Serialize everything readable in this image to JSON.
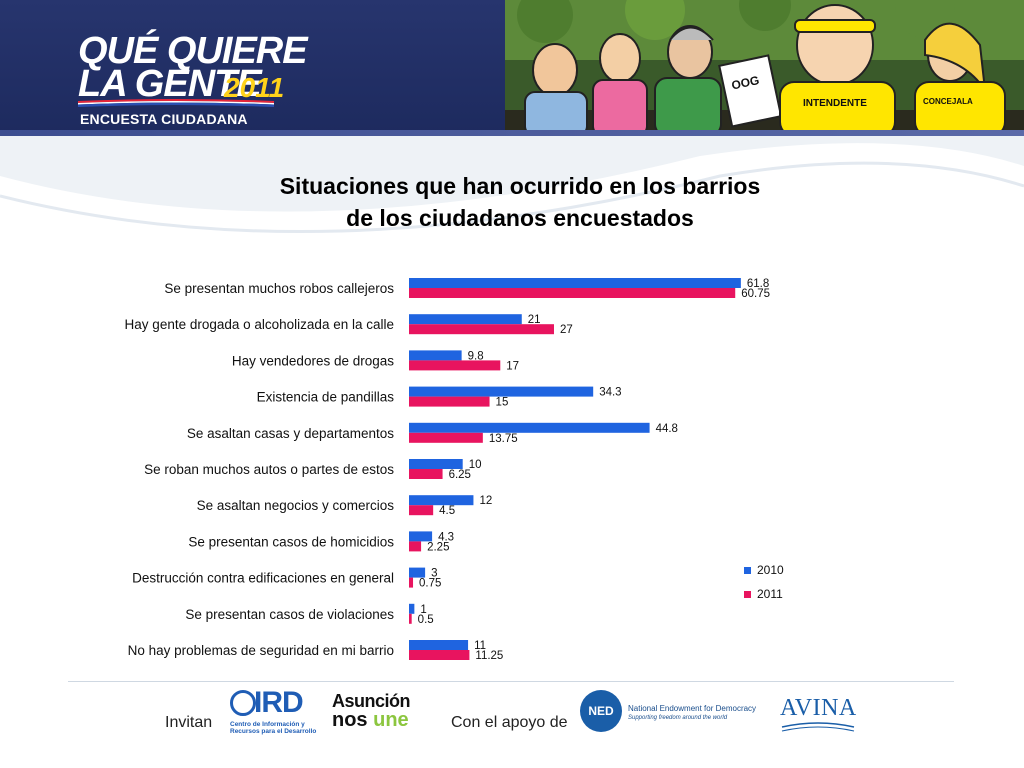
{
  "header": {
    "logo_line1": "QUÉ QUIERE",
    "logo_line2": "LA GENTE",
    "logo_year": "2011",
    "logo_sub": "ENCUESTA CIUDADANA",
    "cartoon_signs": [
      "OOG",
      "INTENDENTE",
      "CONCEJALA"
    ]
  },
  "chart_data": {
    "type": "bar",
    "orientation": "horizontal",
    "title": "Situaciones que han ocurrido en los barrios de los ciudadanos encuestados",
    "title_lines": [
      "Situaciones que han ocurrido en los barrios",
      "de los ciudadanos encuestados"
    ],
    "categories": [
      "Se presentan muchos robos callejeros",
      "Hay gente drogada o alcoholizada en la calle",
      "Hay vendedores de drogas",
      "Existencia de pandillas",
      "Se asaltan casas y departamentos",
      "Se roban muchos autos o partes de estos",
      "Se asaltan negocios y comercios",
      "Se presentan casos de homicidios",
      "Destrucción contra edificaciones en general",
      "Se presentan casos de violaciones",
      "No hay problemas de seguridad en mi barrio"
    ],
    "series": [
      {
        "name": "2010",
        "color": "#1f64e0",
        "values": [
          61.8,
          21,
          9.8,
          34.3,
          44.8,
          10,
          12,
          4.3,
          3,
          1,
          11
        ],
        "labels": [
          "61.8",
          "21",
          "9.8",
          "34.3",
          "44.8",
          "10",
          "12",
          "4.3",
          "3",
          "1",
          "11"
        ]
      },
      {
        "name": "2011",
        "color": "#e8145f",
        "values": [
          60.75,
          27,
          17,
          15,
          13.75,
          6.25,
          4.5,
          2.25,
          0.75,
          0.5,
          11.25
        ],
        "labels": [
          "60.75",
          "27",
          "17",
          "15",
          "13.75",
          "6.25",
          "4.5",
          "2.25",
          "0.75",
          "0.5",
          "11.25"
        ]
      }
    ],
    "xlim": [
      0,
      70
    ],
    "grid": false,
    "legend_position": "right"
  },
  "footer": {
    "invitan": "Invitan",
    "apoyo": "Con el apoyo de",
    "ird_word": "IRD",
    "ird_sub": "Centro de Información y Recursos para el Desarrollo",
    "asuncion_l1": "Asunción",
    "asuncion_l2a": "nos ",
    "asuncion_l2b": "une",
    "ned_abbr": "NED",
    "ned_name": "National Endowment for Democracy",
    "ned_tag": "Supporting freedom around the world",
    "avina": "AVINA"
  }
}
